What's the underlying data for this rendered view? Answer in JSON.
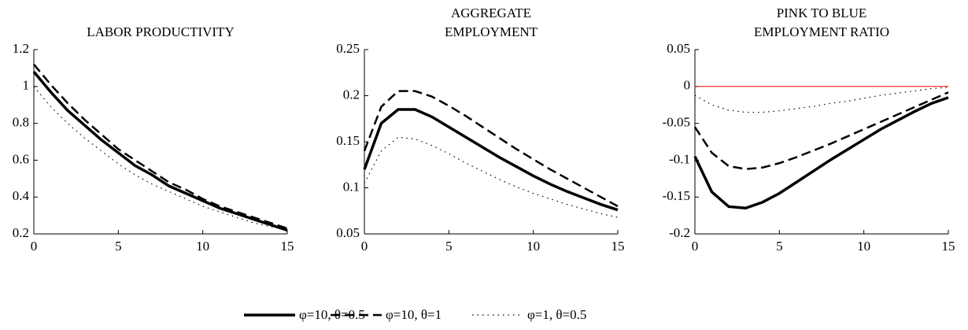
{
  "chart_data": [
    {
      "type": "line",
      "title": [
        "LABOR PRODUCTIVITY"
      ],
      "x": [
        0,
        1,
        2,
        3,
        4,
        5,
        6,
        7,
        8,
        9,
        10,
        11,
        12,
        13,
        14,
        15
      ],
      "xlim": [
        0,
        15
      ],
      "xticks": [
        0,
        5,
        10,
        15
      ],
      "ylim": [
        0.2,
        1.2
      ],
      "yticks": [
        0.2,
        0.4,
        0.6,
        0.8,
        1,
        1.2
      ],
      "series": [
        {
          "name": "φ=10, θ=0.5",
          "color": "#000000",
          "dash": "solid",
          "values": [
            1.08,
            0.97,
            0.87,
            0.79,
            0.71,
            0.64,
            0.57,
            0.52,
            0.46,
            0.42,
            0.38,
            0.34,
            0.31,
            0.28,
            0.25,
            0.22
          ]
        },
        {
          "name": "φ=10, θ=1",
          "color": "#000000",
          "dash": "dashed",
          "values": [
            1.12,
            1.01,
            0.91,
            0.82,
            0.74,
            0.66,
            0.6,
            0.54,
            0.48,
            0.44,
            0.39,
            0.35,
            0.32,
            0.29,
            0.26,
            0.23
          ]
        },
        {
          "name": "φ=1, θ=0.5",
          "color": "#000000",
          "dash": "dotted",
          "values": [
            1.0,
            0.89,
            0.8,
            0.72,
            0.65,
            0.58,
            0.52,
            0.47,
            0.43,
            0.39,
            0.35,
            0.32,
            0.29,
            0.26,
            0.24,
            0.22
          ]
        }
      ]
    },
    {
      "type": "line",
      "title": [
        "AGGREGATE",
        "EMPLOYMENT"
      ],
      "x": [
        0,
        1,
        2,
        3,
        4,
        5,
        6,
        7,
        8,
        9,
        10,
        11,
        12,
        13,
        14,
        15
      ],
      "xlim": [
        0,
        15
      ],
      "xticks": [
        0,
        5,
        10,
        15
      ],
      "ylim": [
        0.05,
        0.25
      ],
      "yticks": [
        0.05,
        0.1,
        0.15,
        0.2,
        0.25
      ],
      "series": [
        {
          "color": "#000000",
          "dash": "solid",
          "values": [
            0.12,
            0.17,
            0.185,
            0.185,
            0.177,
            0.166,
            0.155,
            0.144,
            0.133,
            0.123,
            0.113,
            0.104,
            0.096,
            0.089,
            0.082,
            0.076
          ]
        },
        {
          "color": "#000000",
          "dash": "dashed",
          "values": [
            0.14,
            0.188,
            0.205,
            0.205,
            0.199,
            0.189,
            0.178,
            0.166,
            0.154,
            0.142,
            0.131,
            0.12,
            0.11,
            0.1,
            0.09,
            0.08
          ]
        },
        {
          "color": "#000000",
          "dash": "dotted",
          "values": [
            0.105,
            0.14,
            0.155,
            0.153,
            0.146,
            0.137,
            0.127,
            0.118,
            0.109,
            0.101,
            0.094,
            0.088,
            0.082,
            0.077,
            0.072,
            0.068
          ]
        }
      ]
    },
    {
      "type": "line",
      "title": [
        "PINK TO BLUE",
        "EMPLOYMENT RATIO"
      ],
      "x": [
        0,
        1,
        2,
        3,
        4,
        5,
        6,
        7,
        8,
        9,
        10,
        11,
        12,
        13,
        14,
        15
      ],
      "xlim": [
        0,
        15
      ],
      "xticks": [
        0,
        5,
        10,
        15
      ],
      "ylim": [
        -0.2,
        0.05
      ],
      "yticks": [
        -0.2,
        -0.15,
        -0.1,
        -0.05,
        0,
        0.05
      ],
      "hline": 0,
      "hline_color": "#ff0000",
      "series": [
        {
          "color": "#000000",
          "dash": "solid",
          "values": [
            -0.095,
            -0.143,
            -0.163,
            -0.165,
            -0.157,
            -0.145,
            -0.13,
            -0.115,
            -0.1,
            -0.086,
            -0.072,
            -0.058,
            -0.046,
            -0.034,
            -0.023,
            -0.015
          ]
        },
        {
          "color": "#000000",
          "dash": "dashed",
          "values": [
            -0.055,
            -0.09,
            -0.108,
            -0.112,
            -0.11,
            -0.104,
            -0.096,
            -0.087,
            -0.078,
            -0.068,
            -0.058,
            -0.048,
            -0.038,
            -0.028,
            -0.018,
            -0.008
          ]
        },
        {
          "color": "#000000",
          "dash": "dotted",
          "values": [
            -0.012,
            -0.025,
            -0.032,
            -0.035,
            -0.035,
            -0.033,
            -0.03,
            -0.027,
            -0.023,
            -0.02,
            -0.016,
            -0.012,
            -0.009,
            -0.006,
            -0.003,
            -0.001
          ]
        }
      ]
    }
  ]
}
